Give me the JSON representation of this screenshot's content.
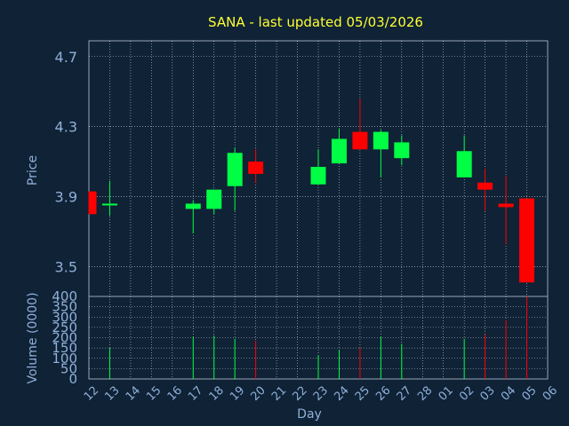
{
  "chart_data": {
    "type": "candlestick",
    "title": "SANA - last updated 05/03/2026",
    "xlabel": "Day",
    "price_panel": {
      "ylabel": "Price",
      "ylim": [
        3.33,
        4.79
      ],
      "yticks": [
        "4.7",
        "4.3",
        "3.9",
        "3.5"
      ],
      "ytick_values": [
        4.7,
        4.3,
        3.9,
        3.5
      ]
    },
    "volume_panel": {
      "ylabel": "Volume (0000)",
      "ylim": [
        0,
        400
      ],
      "yticks": [
        "400",
        "350",
        "300",
        "250",
        "200",
        "150",
        "100",
        "50",
        "0"
      ],
      "ytick_values": [
        400,
        350,
        300,
        250,
        200,
        150,
        100,
        50,
        0
      ]
    },
    "xticks": [
      "12",
      "13",
      "14",
      "15",
      "16",
      "17",
      "18",
      "19",
      "20",
      "21",
      "22",
      "23",
      "24",
      "25",
      "26",
      "27",
      "28",
      "01",
      "02",
      "03",
      "04",
      "05",
      "06"
    ],
    "colors": {
      "up": "#00ff44",
      "down": "#ff0000",
      "title": "#ffff33",
      "label": "#8fb0d8",
      "background": "#0f2236",
      "grid": "#ffffff"
    },
    "candles": [
      {
        "day": "12",
        "open": 3.93,
        "close": 3.8,
        "high": 3.93,
        "low": 3.8,
        "volume": 0
      },
      {
        "day": "13",
        "open": 3.85,
        "close": 3.86,
        "high": 3.99,
        "low": 3.79,
        "volume": 150
      },
      {
        "day": "17",
        "open": 3.83,
        "close": 3.86,
        "high": 3.88,
        "low": 3.69,
        "volume": 205
      },
      {
        "day": "18",
        "open": 3.83,
        "close": 3.94,
        "high": 3.94,
        "low": 3.8,
        "volume": 210
      },
      {
        "day": "19",
        "open": 3.96,
        "close": 4.15,
        "high": 4.18,
        "low": 3.82,
        "volume": 195
      },
      {
        "day": "20",
        "open": 4.1,
        "close": 4.03,
        "high": 4.17,
        "low": 3.98,
        "volume": 185
      },
      {
        "day": "23",
        "open": 3.97,
        "close": 4.07,
        "high": 4.17,
        "low": 3.97,
        "volume": 115
      },
      {
        "day": "24",
        "open": 4.09,
        "close": 4.23,
        "high": 4.29,
        "low": 4.09,
        "volume": 140
      },
      {
        "day": "25",
        "open": 4.27,
        "close": 4.17,
        "high": 4.46,
        "low": 4.17,
        "volume": 150
      },
      {
        "day": "26",
        "open": 4.17,
        "close": 4.27,
        "high": 4.28,
        "low": 4.01,
        "volume": 205
      },
      {
        "day": "27",
        "open": 4.12,
        "close": 4.21,
        "high": 4.25,
        "low": 4.08,
        "volume": 170
      },
      {
        "day": "02",
        "open": 4.01,
        "close": 4.16,
        "high": 4.25,
        "low": 4.01,
        "volume": 195
      },
      {
        "day": "03",
        "open": 3.98,
        "close": 3.94,
        "high": 4.06,
        "low": 3.82,
        "volume": 215
      },
      {
        "day": "04",
        "open": 3.86,
        "close": 3.84,
        "high": 4.02,
        "low": 3.63,
        "volume": 285
      },
      {
        "day": "05",
        "open": 3.89,
        "close": 3.41,
        "high": 3.89,
        "low": 3.41,
        "volume": 400
      }
    ]
  }
}
